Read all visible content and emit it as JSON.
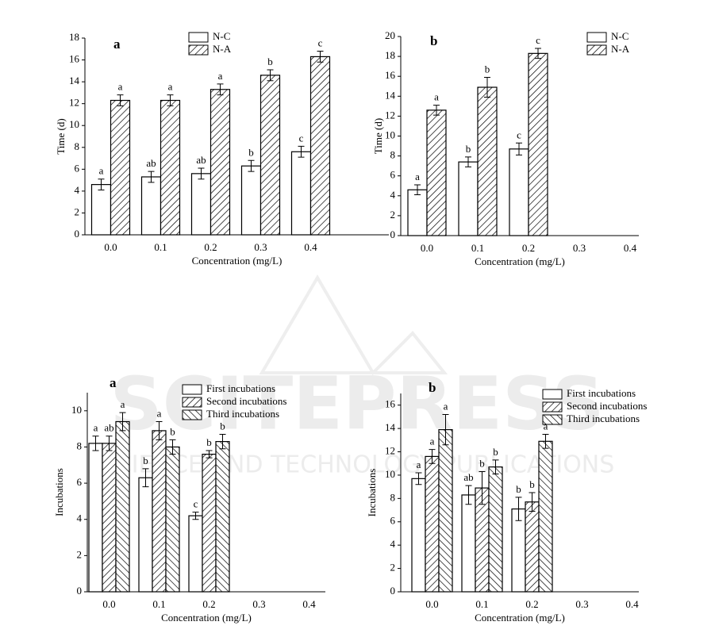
{
  "watermark": "SCITEPRESS",
  "watermark_subtitle": "SCIENCE AND TECHNOLOGY PUBLICATIONS",
  "chart_data": [
    {
      "type": "bar",
      "panel_label": "a",
      "ylabel": "Time (d)",
      "xlabel": "Concentration (mg/L)",
      "categories": [
        "0.0",
        "0.1",
        "0.2",
        "0.3",
        "0.4"
      ],
      "series": [
        {
          "name": "N-C",
          "color": "#000000",
          "hatch": "none",
          "values": [
            4.6,
            5.3,
            5.6,
            6.3,
            7.6
          ],
          "errors": [
            0.5,
            0.5,
            0.5,
            0.5,
            0.5
          ],
          "letters": [
            "a",
            "ab",
            "ab",
            "b",
            "c"
          ]
        },
        {
          "name": "N-A",
          "color": "#000000",
          "hatch": "forward",
          "values": [
            12.3,
            12.3,
            13.3,
            14.6,
            16.3
          ],
          "errors": [
            0.5,
            0.5,
            0.5,
            0.5,
            0.5
          ],
          "letters": [
            "a",
            "a",
            "a",
            "b",
            "c"
          ]
        }
      ],
      "ylim": [
        0,
        18
      ],
      "yticks": [
        0,
        2,
        4,
        6,
        8,
        10,
        12,
        14,
        16,
        18
      ]
    },
    {
      "type": "bar",
      "panel_label": "b",
      "ylabel": "Time (d)",
      "xlabel": "Concentration (mg/L)",
      "categories": [
        "0.0",
        "0.1",
        "0.2",
        "0.3",
        "0.4"
      ],
      "series": [
        {
          "name": "N-C",
          "color": "#000000",
          "hatch": "none",
          "values": [
            4.6,
            7.4,
            8.7,
            null,
            null
          ],
          "errors": [
            0.5,
            0.5,
            0.6,
            null,
            null
          ],
          "letters": [
            "a",
            "b",
            "c",
            null,
            null
          ]
        },
        {
          "name": "N-A",
          "color": "#000000",
          "hatch": "forward",
          "values": [
            12.6,
            14.9,
            18.3,
            null,
            null
          ],
          "errors": [
            0.5,
            1.0,
            0.5,
            null,
            null
          ],
          "letters": [
            "a",
            "b",
            "c",
            null,
            null
          ]
        }
      ],
      "ylim": [
        0,
        20
      ],
      "yticks": [
        0,
        2,
        4,
        6,
        8,
        10,
        12,
        14,
        16,
        18,
        20
      ]
    },
    {
      "type": "bar",
      "panel_label": "a",
      "ylabel": "Incubations",
      "xlabel": "Concentration (mg/L)",
      "categories": [
        "0.0",
        "0.1",
        "0.2",
        "0.3",
        "0.4"
      ],
      "series": [
        {
          "name": "First incubations",
          "color": "#000000",
          "hatch": "none",
          "values": [
            8.2,
            6.3,
            4.2,
            null,
            null
          ],
          "errors": [
            0.4,
            0.5,
            0.2,
            null,
            null
          ],
          "letters": [
            "a",
            "b",
            "c",
            null,
            null
          ]
        },
        {
          "name": "Second incubations",
          "color": "#000000",
          "hatch": "forward",
          "values": [
            8.2,
            8.9,
            7.6,
            null,
            null
          ],
          "errors": [
            0.4,
            0.5,
            0.2,
            null,
            null
          ],
          "letters": [
            "ab",
            "a",
            "b",
            null,
            null
          ]
        },
        {
          "name": "Third incubations",
          "color": "#000000",
          "hatch": "back",
          "values": [
            9.4,
            8.0,
            8.3,
            null,
            null
          ],
          "errors": [
            0.5,
            0.4,
            0.4,
            null,
            null
          ],
          "letters": [
            "a",
            "b",
            "b",
            null,
            null
          ]
        }
      ],
      "ylim": [
        0,
        11
      ],
      "yticks": [
        0,
        2,
        4,
        6,
        8,
        10
      ]
    },
    {
      "type": "bar",
      "panel_label": "b",
      "ylabel": "Incubations",
      "xlabel": "Concentration (mg/L)",
      "categories": [
        "0.0",
        "0.1",
        "0.2",
        "0.3",
        "0.4"
      ],
      "series": [
        {
          "name": "First incubations",
          "color": "#000000",
          "hatch": "none",
          "values": [
            9.7,
            8.3,
            7.1,
            null,
            null
          ],
          "errors": [
            0.5,
            0.8,
            1.0,
            null,
            null
          ],
          "letters": [
            "a",
            "ab",
            "b",
            null,
            null
          ]
        },
        {
          "name": "Second incubations",
          "color": "#000000",
          "hatch": "forward",
          "values": [
            11.6,
            8.9,
            7.7,
            null,
            null
          ],
          "errors": [
            0.6,
            1.4,
            0.8,
            null,
            null
          ],
          "letters": [
            "a",
            "b",
            "b",
            null,
            null
          ]
        },
        {
          "name": "Third incubations",
          "color": "#000000",
          "hatch": "back",
          "values": [
            13.9,
            10.7,
            12.9,
            null,
            null
          ],
          "errors": [
            1.3,
            0.6,
            0.6,
            null,
            null
          ],
          "letters": [
            "a",
            "b",
            "a",
            null,
            null
          ]
        }
      ],
      "ylim": [
        0,
        17
      ],
      "yticks": [
        0,
        2,
        4,
        6,
        8,
        10,
        12,
        14,
        16
      ]
    }
  ]
}
